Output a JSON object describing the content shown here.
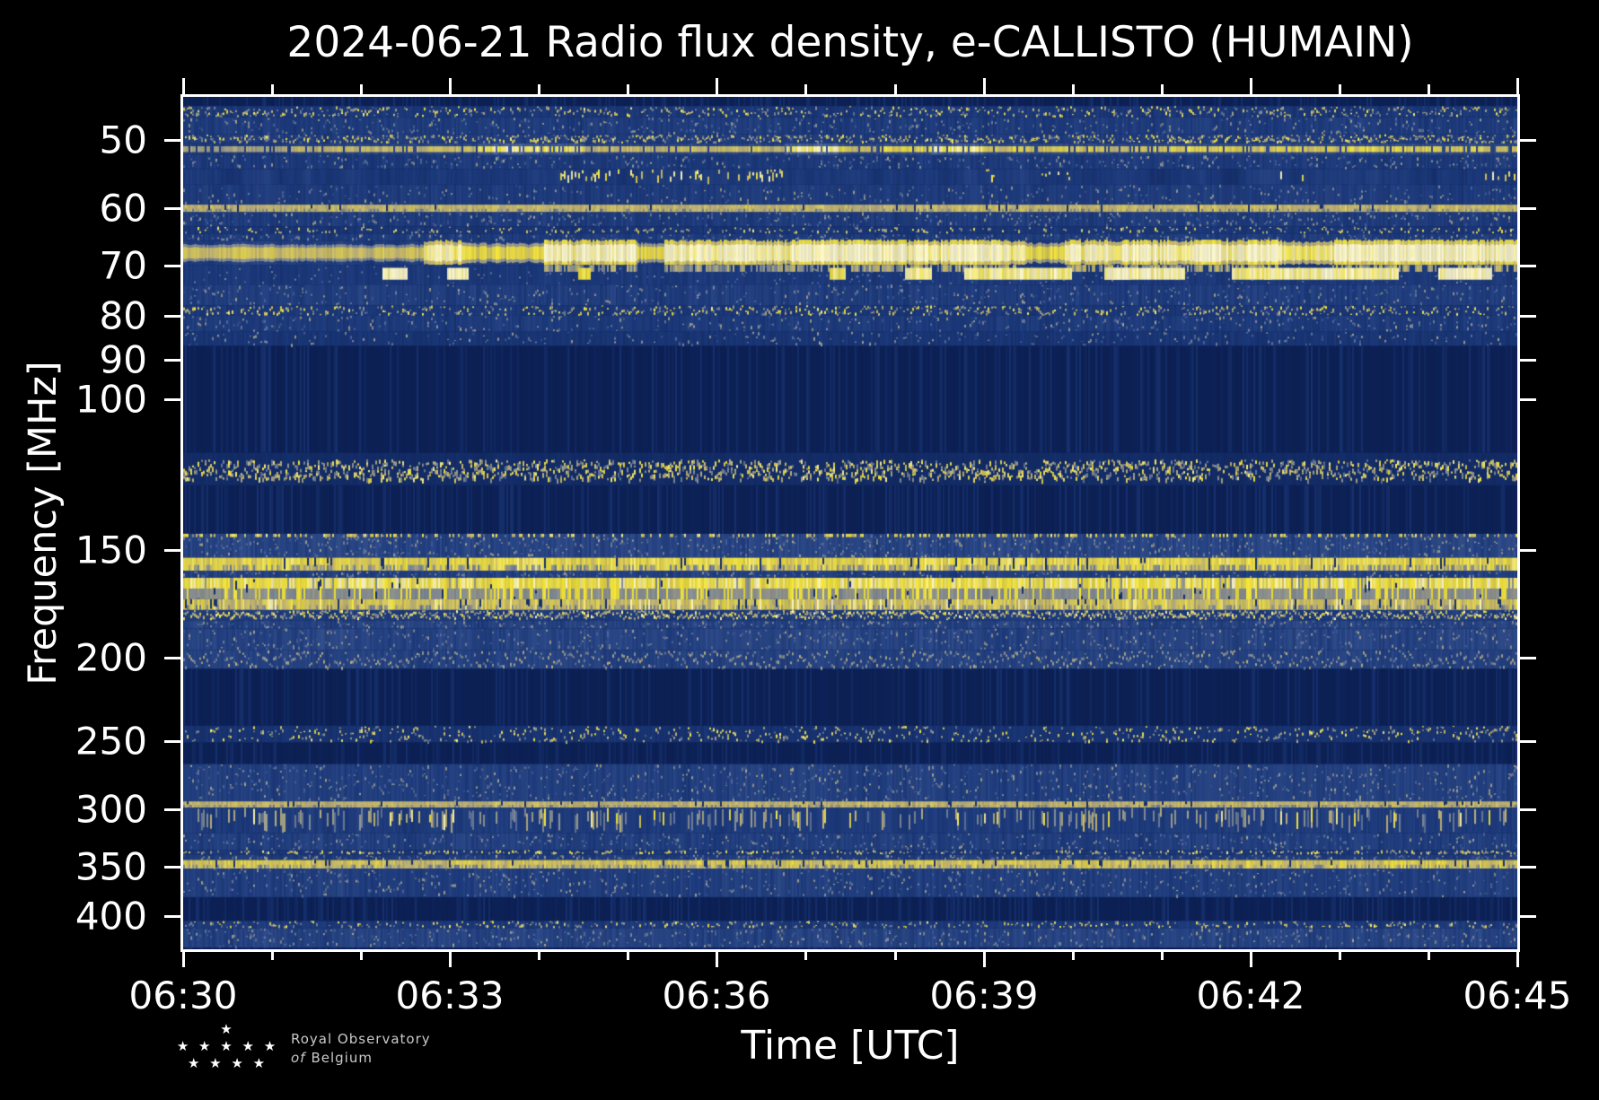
{
  "title": "2024-06-21 Radio flux density, e-CALLISTO (HUMAIN)",
  "axes": {
    "xlabel": "Time [UTC]",
    "ylabel": "Frequency [MHz]",
    "x_tick_labels": [
      "06:30",
      "06:33",
      "06:36",
      "06:39",
      "06:42",
      "06:45"
    ],
    "y_tick_labels": [
      "50",
      "60",
      "70",
      "80",
      "90",
      "100",
      "150",
      "200",
      "250",
      "300",
      "350",
      "400"
    ]
  },
  "logo": {
    "star_rows": [
      "★",
      "★ ★ ★ ★ ★",
      "★ ★ ★ ★"
    ],
    "line1": "Royal Observatory",
    "line2_italic": "of",
    "line2_rest": "Belgium"
  },
  "chart_data": {
    "type": "heatmap",
    "subtype": "radio-spectrogram",
    "title": "2024-06-21 Radio flux density, e-CALLISTO (HUMAIN)",
    "xlabel": "Time [UTC]",
    "ylabel": "Frequency [MHz]",
    "x_ticks": [
      "06:30",
      "06:33",
      "06:36",
      "06:39",
      "06:42",
      "06:45"
    ],
    "x_minor_interval_min": 1,
    "x_span_min": 15,
    "y_scale": "log",
    "y_axis_inverted": "low frequency at top",
    "y_ticks_mhz": [
      50,
      60,
      70,
      80,
      90,
      100,
      150,
      200,
      250,
      300,
      350,
      400
    ],
    "y_range_mhz": [
      44.5,
      437
    ],
    "grid": "off",
    "legend": "none",
    "background_color": "#000000",
    "quiet_color": "#0d2258",
    "colormap_stops": [
      {
        "v": 0.0,
        "c": "#0d2258"
      },
      {
        "v": 0.15,
        "c": "#1d3b7e"
      },
      {
        "v": 0.35,
        "c": "#45619d"
      },
      {
        "v": 0.55,
        "c": "#8e9495"
      },
      {
        "v": 0.7,
        "c": "#c9ba74"
      },
      {
        "v": 0.85,
        "c": "#f6e73c"
      },
      {
        "v": 1.0,
        "c": "#fdf8cf"
      }
    ],
    "features": [
      "intermittent bright narrow line near 50-52 MHz across full interval",
      "faint continuous line near 60 MHz",
      "strong continuous enhanced emission band ~66-72 MHz, brightest from 06:33.5 to 06:45",
      "isolated bright blobs ~70-74 MHz near 06:32.3 and 06:33",
      "quiet dark band ~87-115 MHz",
      "dense speckle band (airband) ~116-126 MHz",
      "quiet dark band ~126-143 MHz",
      "sandy continuous band ~153-158 MHz crossed by short dark drop-outs",
      "very bright saturated yellow band ~161-171 MHz with vertical streaks",
      "gray band ~171-176 MHz and dense dash line ~176-181 MHz",
      "gray speckle band near 200 MHz",
      "quiet band ~206-240 MHz, weak speckle near 250 MHz",
      "active speckled region ~266-335 MHz with pale vertical dashes near 300-320 MHz",
      "narrow sandy line near 350 MHz",
      "gray speckle line near 410 MHz over quiet band"
    ],
    "bands": [
      {
        "f1": 44.5,
        "f2": 45.6,
        "style": "quiet",
        "level": 0.1
      },
      {
        "f1": 45.6,
        "f2": 47.0,
        "style": "speckle",
        "level": 0.4
      },
      {
        "f1": 47.0,
        "f2": 49.2,
        "style": "noise",
        "level": 0.3
      },
      {
        "f1": 49.2,
        "f2": 50.4,
        "style": "speckle",
        "level": 0.5
      },
      {
        "f1": 50.4,
        "f2": 52.0,
        "style": "brightdash",
        "level": 0.55,
        "segs": [
          [
            0,
            0.08,
            0.35
          ],
          [
            0.08,
            0.22,
            0.5
          ],
          [
            0.22,
            0.26,
            0.95
          ],
          [
            0.26,
            0.3,
            0.85
          ],
          [
            0.3,
            0.45,
            0.5
          ],
          [
            0.45,
            0.49,
            0.9
          ],
          [
            0.49,
            0.56,
            0.6
          ],
          [
            0.56,
            0.6,
            0.95
          ],
          [
            0.6,
            0.64,
            0.6
          ],
          [
            0.64,
            1,
            0.62
          ]
        ]
      },
      {
        "f1": 52.0,
        "f2": 54.0,
        "style": "noise",
        "level": 0.28
      },
      {
        "f1": 54.0,
        "f2": 56.3,
        "style": "dashes",
        "level": 0.25,
        "segs": [
          [
            0.28,
            0.45,
            0.8
          ],
          [
            0.6,
            0.68,
            0.5
          ],
          [
            0.82,
            0.84,
            0.4
          ],
          [
            0.97,
            1,
            0.5
          ]
        ]
      },
      {
        "f1": 56.3,
        "f2": 59.4,
        "style": "noise",
        "level": 0.3
      },
      {
        "f1": 59.4,
        "f2": 60.6,
        "style": "sand",
        "level": 0.45
      },
      {
        "f1": 60.6,
        "f2": 63.0,
        "style": "noise",
        "level": 0.3
      },
      {
        "f1": 63.0,
        "f2": 64.2,
        "style": "speckle",
        "level": 0.35
      },
      {
        "f1": 64.2,
        "f2": 65.5,
        "style": "noise",
        "level": 0.3
      },
      {
        "f1": 65.5,
        "f2": 69.8,
        "style": "bright70",
        "level": 0.9,
        "segs": [
          [
            0,
            0.18,
            0.4
          ],
          [
            0.18,
            0.21,
            0.85
          ],
          [
            0.21,
            0.27,
            0.55
          ],
          [
            0.27,
            0.34,
            0.95
          ],
          [
            0.34,
            0.36,
            0.55
          ],
          [
            0.36,
            0.63,
            1.0
          ],
          [
            0.63,
            0.66,
            0.7
          ],
          [
            0.66,
            0.82,
            1.0
          ],
          [
            0.82,
            0.86,
            0.75
          ],
          [
            0.86,
            1,
            1.05
          ]
        ]
      },
      {
        "f1": 69.8,
        "f2": 73.6,
        "style": "blobs",
        "level": 0.35,
        "fuzzsegs": [
          [
            0.27,
            0.34,
            0.9
          ],
          [
            0.36,
            0.63,
            1.0
          ],
          [
            0.66,
            0.82,
            1.0
          ],
          [
            0.86,
            1,
            1.05
          ]
        ],
        "blobs": [
          [
            0.158,
            0.018,
            1
          ],
          [
            0.205,
            0.016,
            1
          ],
          [
            0.3,
            0.01,
            0.6
          ],
          [
            0.49,
            0.012,
            0.7
          ],
          [
            0.55,
            0.02,
            0.9
          ],
          [
            0.6,
            0.03,
            0.85
          ],
          [
            0.64,
            0.05,
            0.9
          ],
          [
            0.7,
            0.02,
            0.8
          ],
          [
            0.72,
            0.06,
            0.95
          ],
          [
            0.8,
            0.03,
            0.8
          ],
          [
            0.86,
            0.1,
            0.9
          ],
          [
            0.96,
            0.04,
            1
          ]
        ]
      },
      {
        "f1": 73.6,
        "f2": 77.8,
        "style": "noise",
        "level": 0.32
      },
      {
        "f1": 77.8,
        "f2": 80.0,
        "style": "speckle",
        "level": 0.4
      },
      {
        "f1": 80.0,
        "f2": 83.5,
        "style": "noise",
        "level": 0.28
      },
      {
        "f1": 83.5,
        "f2": 86.7,
        "style": "noise",
        "level": 0.2
      },
      {
        "f1": 86.7,
        "f2": 115.5,
        "style": "quiet",
        "level": 0.08
      },
      {
        "f1": 115.5,
        "f2": 126.0,
        "style": "airband",
        "level": 0.55
      },
      {
        "f1": 126.0,
        "f2": 143.5,
        "style": "quiet",
        "level": 0.08
      },
      {
        "f1": 143.5,
        "f2": 153.0,
        "style": "noise",
        "level": 0.42,
        "topdash": true
      },
      {
        "f1": 153.0,
        "f2": 158.5,
        "style": "sand",
        "level": 0.7
      },
      {
        "f1": 158.5,
        "f2": 161.5,
        "style": "noise",
        "level": 0.35
      },
      {
        "f1": 161.5,
        "f2": 171.0,
        "style": "vhfbright",
        "level": 0.95
      },
      {
        "f1": 171.0,
        "f2": 176.0,
        "style": "sand",
        "level": 0.5,
        "streaks": true
      },
      {
        "f1": 176.0,
        "f2": 181.0,
        "style": "dashline",
        "level": 0.45
      },
      {
        "f1": 181.0,
        "f2": 185.0,
        "style": "noise",
        "level": 0.4
      },
      {
        "f1": 185.0,
        "f2": 196.0,
        "style": "noise",
        "level": 0.42
      },
      {
        "f1": 196.0,
        "f2": 206.0,
        "style": "specband",
        "level": 0.5
      },
      {
        "f1": 206.0,
        "f2": 240.0,
        "style": "quiet",
        "level": 0.08
      },
      {
        "f1": 240.0,
        "f2": 251.0,
        "style": "speckle",
        "level": 0.28
      },
      {
        "f1": 251.0,
        "f2": 266.0,
        "style": "quiet",
        "level": 0.09
      },
      {
        "f1": 266.0,
        "f2": 294.0,
        "style": "noise",
        "level": 0.36
      },
      {
        "f1": 294.0,
        "f2": 299.0,
        "style": "sand",
        "level": 0.42
      },
      {
        "f1": 299.0,
        "f2": 320.0,
        "style": "blobdash",
        "level": 0.38
      },
      {
        "f1": 320.0,
        "f2": 335.0,
        "style": "noise",
        "level": 0.34
      },
      {
        "f1": 335.0,
        "f2": 339.0,
        "style": "speckle",
        "level": 0.4
      },
      {
        "f1": 339.0,
        "f2": 344.0,
        "style": "noise",
        "level": 0.3
      },
      {
        "f1": 344.0,
        "f2": 352.0,
        "style": "sand",
        "level": 0.55
      },
      {
        "f1": 352.0,
        "f2": 380.0,
        "style": "noise",
        "level": 0.34
      },
      {
        "f1": 380.0,
        "f2": 405.0,
        "style": "quiet",
        "level": 0.09
      },
      {
        "f1": 405.0,
        "f2": 413.0,
        "style": "speckle",
        "level": 0.45
      },
      {
        "f1": 413.0,
        "f2": 435.0,
        "style": "noise",
        "level": 0.4
      },
      {
        "f1": 435.0,
        "f2": 437.0,
        "style": "quiet",
        "level": 0.08
      }
    ]
  }
}
